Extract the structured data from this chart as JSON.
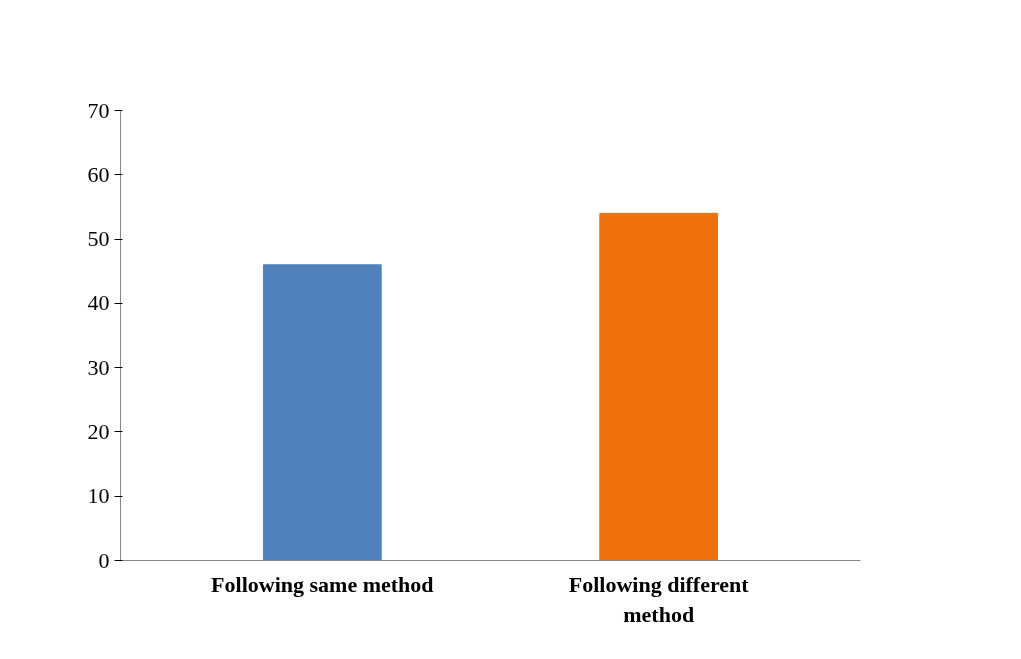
{
  "chart_data": {
    "type": "bar",
    "categories": [
      "Following same method",
      "Following different method"
    ],
    "values": [
      46,
      54
    ],
    "colors": [
      "#4f81bd",
      "#f0720f"
    ],
    "ylim": [
      0,
      70
    ],
    "yticks": [
      0,
      10,
      20,
      30,
      40,
      50,
      60,
      70
    ],
    "grid": false
  }
}
